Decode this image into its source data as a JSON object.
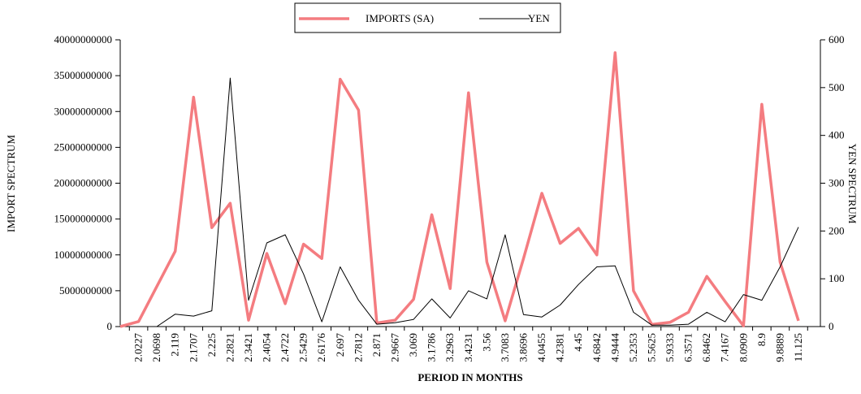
{
  "chart_data": {
    "type": "line",
    "x_label": "PERIOD IN MONTHS",
    "y_label": "IMPORT SPECTRUM",
    "y2_label": "YEN SPECTRUM",
    "categories": [
      null,
      "2.0227",
      "2.0698",
      "2.119",
      "2.1707",
      "2.225",
      "2.2821",
      "2.3421",
      "2.4054",
      "2.4722",
      "2.5429",
      "2.6176",
      "2.697",
      "2.7812",
      "2.871",
      "2.9667",
      "3.069",
      "3.1786",
      "3.2963",
      "3.4231",
      "3.56",
      "3.7083",
      "3.8696",
      "4.0455",
      "4.2381",
      "4.45",
      "4.6842",
      "4.9444",
      "5.2353",
      "5.5625",
      "5.9333",
      "6.3571",
      "6.8462",
      "7.4167",
      "8.0909",
      "8.9",
      "9.8889",
      "11.125"
    ],
    "series": [
      {
        "name": "IMPORTS (SA)",
        "color": "#f47c80",
        "width": 3.5,
        "values": [
          0,
          700000000,
          5600000000,
          10500000000,
          32000000000,
          13800000000,
          17200000000,
          900000000,
          10200000000,
          3200000000,
          11500000000,
          9500000000,
          34500000000,
          30200000000,
          500000000,
          900000000,
          3800000000,
          15600000000,
          5300000000,
          32600000000,
          9000000000,
          800000000,
          9500000000,
          18600000000,
          11600000000,
          13700000000,
          10000000000,
          38200000000,
          5000000000,
          300000000,
          600000000,
          2000000000,
          7000000000,
          3500000000,
          100000000,
          31000000000,
          9000000000,
          800000000
        ]
      },
      {
        "name": "YEN",
        "color": "#000000",
        "width": 1,
        "axis": "y2",
        "values": [
          null,
          0,
          0,
          26,
          22,
          33,
          520,
          55,
          175,
          192,
          110,
          10,
          125,
          55,
          5,
          8,
          15,
          58,
          18,
          75,
          58,
          192,
          25,
          20,
          45,
          88,
          125,
          127,
          30,
          3,
          3,
          5,
          30,
          10,
          67,
          55,
          125,
          208
        ]
      }
    ],
    "ylim": [
      0,
      40000000000
    ],
    "yticks": [
      0,
      5000000000,
      10000000000,
      15000000000,
      20000000000,
      25000000000,
      30000000000,
      35000000000,
      40000000000
    ],
    "y2lim": [
      0,
      600
    ],
    "y2ticks": [
      0,
      100,
      200,
      300,
      400,
      500,
      600
    ],
    "grid": false,
    "legend": "top"
  }
}
